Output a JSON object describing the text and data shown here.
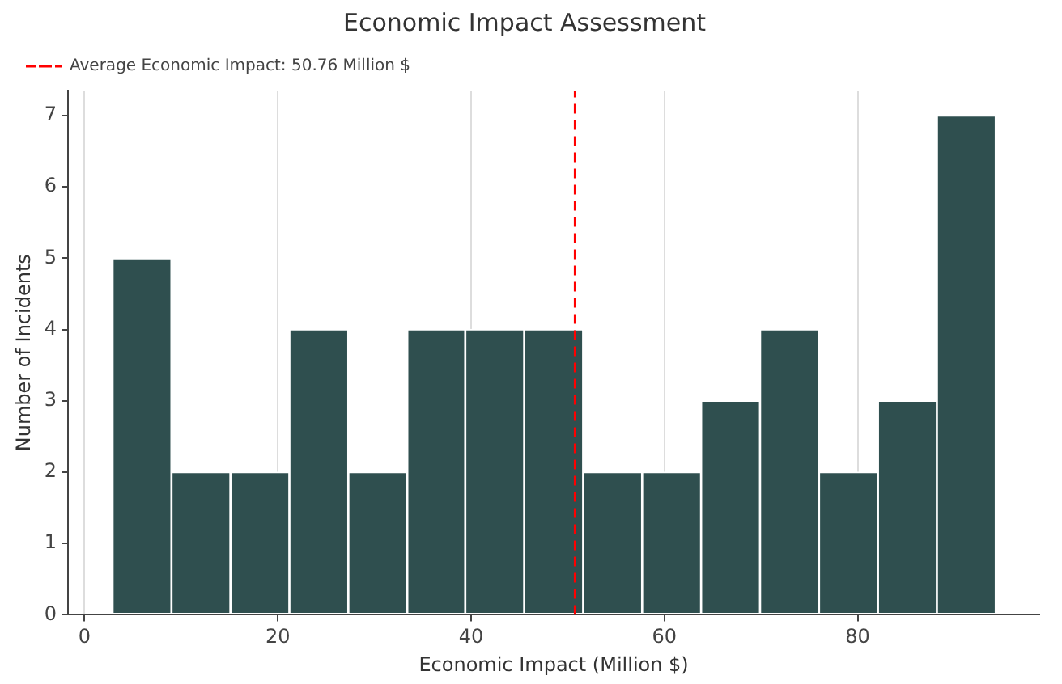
{
  "chart_data": {
    "type": "histogram",
    "title": "Economic Impact Assessment",
    "xlabel": "Economic Impact (Million $)",
    "ylabel": "Number of Incidents",
    "bins": [
      2.9,
      9.0,
      15.1,
      21.2,
      27.3,
      33.4,
      39.4,
      45.5,
      51.6,
      57.7,
      63.8,
      69.9,
      76.0,
      82.1,
      88.2,
      94.3
    ],
    "values": [
      5,
      2,
      2,
      4,
      2,
      4,
      4,
      4,
      2,
      2,
      3,
      4,
      2,
      3,
      7
    ],
    "color": "#2f4f4f",
    "xlim": [
      -1.7,
      98.8
    ],
    "xticks": [
      0,
      20,
      40,
      60,
      80
    ],
    "ylim": [
      0,
      7.35
    ],
    "yticks": [
      0,
      1,
      2,
      3,
      4,
      5,
      6,
      7
    ],
    "ref_lines": [
      {
        "axis": "x",
        "value": 50.76,
        "label": "Average Economic Impact: 50.76 Million $",
        "color": "#ff0000",
        "line_style": "dashed"
      }
    ],
    "grid": "x",
    "legend": "top left"
  }
}
